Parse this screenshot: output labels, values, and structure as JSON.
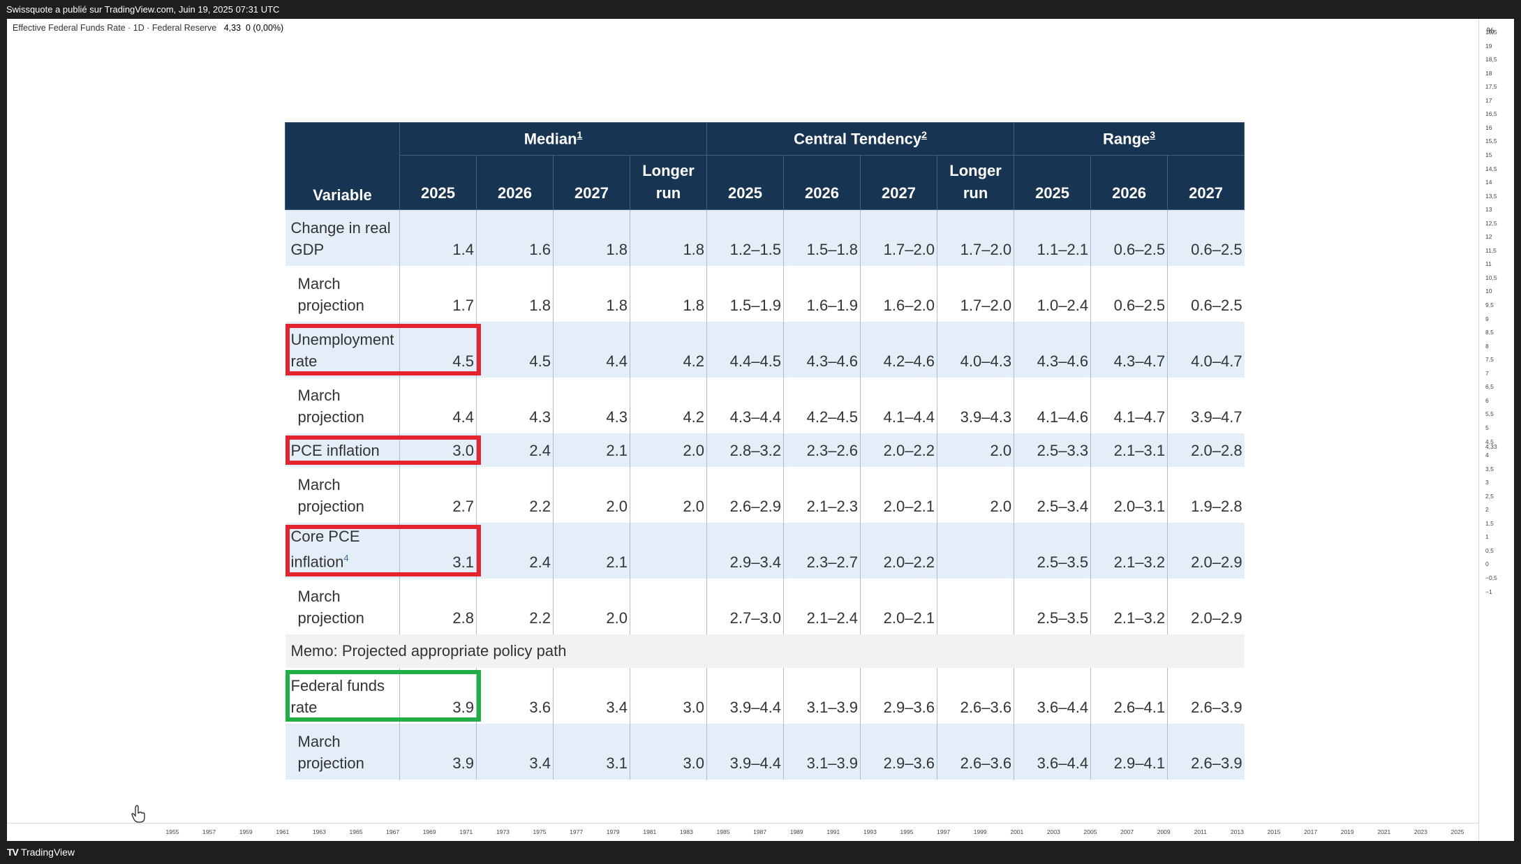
{
  "topbar": {
    "text": "Swissquote a publié sur TradingView.com, Juin 19, 2025 07:31 UTC"
  },
  "legend": {
    "symbol": "Effective Federal Funds Rate · 1D · Federal Reserve",
    "value": "4,33",
    "change": "0 (0,00%)"
  },
  "yaxis": {
    "unit": "%",
    "ticks": [
      "19,5",
      "19",
      "18,5",
      "18",
      "17,5",
      "17",
      "16,5",
      "16",
      "15,5",
      "15",
      "14,5",
      "14",
      "13,5",
      "13",
      "12,5",
      "12",
      "11,5",
      "11",
      "10,5",
      "10",
      "9,5",
      "9",
      "8,5",
      "8",
      "7,5",
      "7",
      "6,5",
      "6",
      "5,5",
      "5",
      "4,5",
      "4,33",
      "4",
      "3,5",
      "3",
      "2,5",
      "2",
      "1,5",
      "1",
      "0,5",
      "0",
      "−0,5",
      "−1"
    ]
  },
  "xaxis": {
    "ticks": [
      "1955",
      "1957",
      "1959",
      "1961",
      "1963",
      "1965",
      "1967",
      "1969",
      "1971",
      "1973",
      "1975",
      "1977",
      "1979",
      "1981",
      "1983",
      "1985",
      "1987",
      "1989",
      "1991",
      "1993",
      "1995",
      "1997",
      "1999",
      "2001",
      "2003",
      "2005",
      "2007",
      "2009",
      "2011",
      "2013",
      "2015",
      "2017",
      "2019",
      "2021",
      "2023",
      "2025"
    ]
  },
  "brand": {
    "name": "TradingView",
    "logo": "TV"
  },
  "table": {
    "headers": {
      "variable": "Variable",
      "median": "Median",
      "median_note": "1",
      "central": "Central Tendency",
      "central_note": "2",
      "range": "Range",
      "range_note": "3",
      "years": [
        "2025",
        "2026",
        "2027",
        "Longer run",
        "2025",
        "2026",
        "2027",
        "Longer run",
        "2025",
        "2026",
        "2027"
      ]
    },
    "rows": [
      {
        "label": "Change in real GDP",
        "cells": [
          "1.4",
          "1.6",
          "1.8",
          "1.8",
          "1.2–1.5",
          "1.5–1.8",
          "1.7–2.0",
          "1.7–2.0",
          "1.1–2.1",
          "0.6–2.5",
          "0.6–2.5"
        ]
      },
      {
        "label": "March projection",
        "cells": [
          "1.7",
          "1.8",
          "1.8",
          "1.8",
          "1.5–1.9",
          "1.6–1.9",
          "1.6–2.0",
          "1.7–2.0",
          "1.0–2.4",
          "0.6–2.5",
          "0.6–2.5"
        ]
      },
      {
        "label": "Unemployment rate",
        "cells": [
          "4.5",
          "4.5",
          "4.4",
          "4.2",
          "4.4–4.5",
          "4.3–4.6",
          "4.2–4.6",
          "4.0–4.3",
          "4.3–4.6",
          "4.3–4.7",
          "4.0–4.7"
        ]
      },
      {
        "label": "March projection",
        "cells": [
          "4.4",
          "4.3",
          "4.3",
          "4.2",
          "4.3–4.4",
          "4.2–4.5",
          "4.1–4.4",
          "3.9–4.3",
          "4.1–4.6",
          "4.1–4.7",
          "3.9–4.7"
        ]
      },
      {
        "label": "PCE inflation",
        "cells": [
          "3.0",
          "2.4",
          "2.1",
          "2.0",
          "2.8–3.2",
          "2.3–2.6",
          "2.0–2.2",
          "2.0",
          "2.5–3.3",
          "2.1–3.1",
          "2.0–2.8"
        ]
      },
      {
        "label": "March projection",
        "cells": [
          "2.7",
          "2.2",
          "2.0",
          "2.0",
          "2.6–2.9",
          "2.1–2.3",
          "2.0–2.1",
          "2.0",
          "2.5–3.4",
          "2.0–3.1",
          "1.9–2.8"
        ]
      },
      {
        "label": "Core PCE inflation",
        "note": "4",
        "cells": [
          "3.1",
          "2.4",
          "2.1",
          "",
          "2.9–3.4",
          "2.3–2.7",
          "2.0–2.2",
          "",
          "2.5–3.5",
          "2.1–3.2",
          "2.0–2.9"
        ]
      },
      {
        "label": "March projection",
        "cells": [
          "2.8",
          "2.2",
          "2.0",
          "",
          "2.7–3.0",
          "2.1–2.4",
          "2.0–2.1",
          "",
          "2.5–3.5",
          "2.1–3.2",
          "2.0–2.9"
        ]
      },
      {
        "label": "Federal funds rate",
        "cells": [
          "3.9",
          "3.6",
          "3.4",
          "3.0",
          "3.9–4.4",
          "3.1–3.9",
          "2.9–3.6",
          "2.6–3.6",
          "3.6–4.4",
          "2.6–4.1",
          "2.6–3.9"
        ]
      },
      {
        "label": "March projection",
        "cells": [
          "3.9",
          "3.4",
          "3.1",
          "3.0",
          "3.9–4.4",
          "3.1–3.9",
          "2.9–3.6",
          "2.6–3.6",
          "3.6–4.4",
          "2.9–4.1",
          "2.6–3.9"
        ]
      }
    ],
    "memo": "Memo: Projected appropriate policy path"
  },
  "highlights": {
    "red": "#e3232e",
    "green": "#21ae46"
  }
}
